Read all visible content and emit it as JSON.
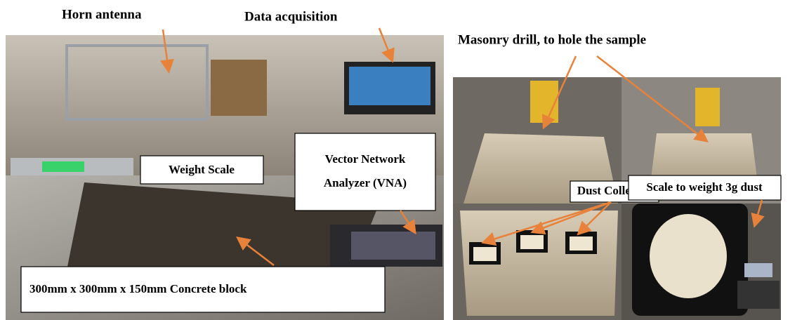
{
  "labels": {
    "horn_antenna": "Horn antenna",
    "data_acquisition": "Data acquisition",
    "masonry_drill": "Masonry drill, to hole the sample",
    "weight_scale": "Weight Scale",
    "vna": [
      "Vector Network",
      "Analyzer (VNA)"
    ],
    "concrete_block": "300mm x 300mm x 150mm Concrete block",
    "dust_collected": "Dust Collected",
    "scale_dust": "Scale to weight 3g dust"
  }
}
